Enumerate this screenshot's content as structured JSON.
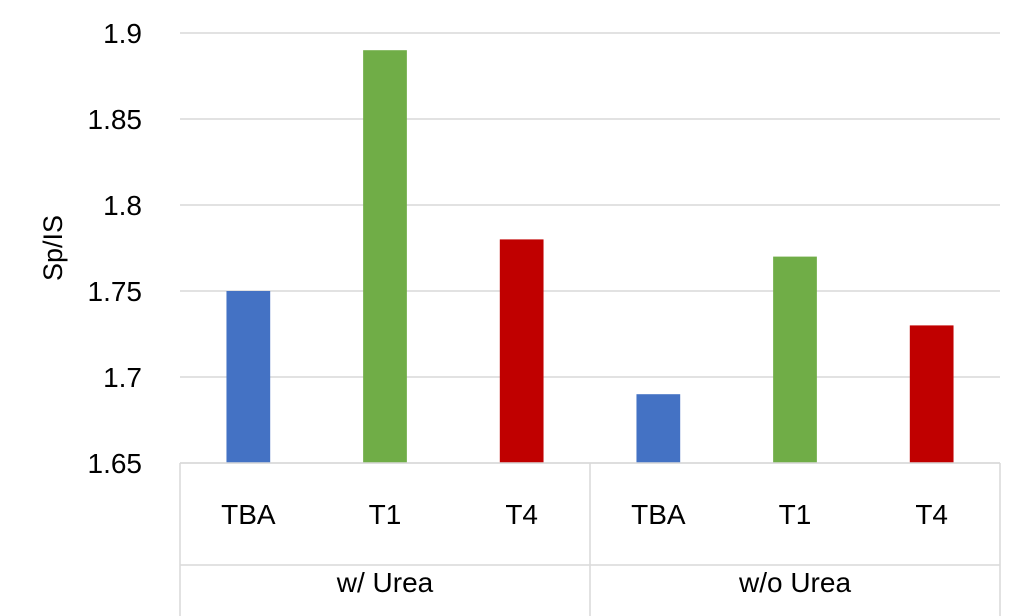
{
  "chart_data": {
    "type": "bar",
    "ylabel": "Sp/IS",
    "ylim": [
      1.65,
      1.9
    ],
    "yticks": [
      "1.65",
      "1.7",
      "1.75",
      "1.8",
      "1.85",
      "1.9"
    ],
    "grid": true,
    "groups": [
      {
        "label": "w/ Urea",
        "bars": [
          {
            "category": "TBA",
            "value": 1.75,
            "color": "#4472C4"
          },
          {
            "category": "T1",
            "value": 1.89,
            "color": "#70AD47"
          },
          {
            "category": "T4",
            "value": 1.78,
            "color": "#C00000"
          }
        ]
      },
      {
        "label": "w/o Urea",
        "bars": [
          {
            "category": "TBA",
            "value": 1.69,
            "color": "#4472C4"
          },
          {
            "category": "T1",
            "value": 1.77,
            "color": "#70AD47"
          },
          {
            "category": "T4",
            "value": 1.73,
            "color": "#C00000"
          }
        ]
      }
    ]
  }
}
